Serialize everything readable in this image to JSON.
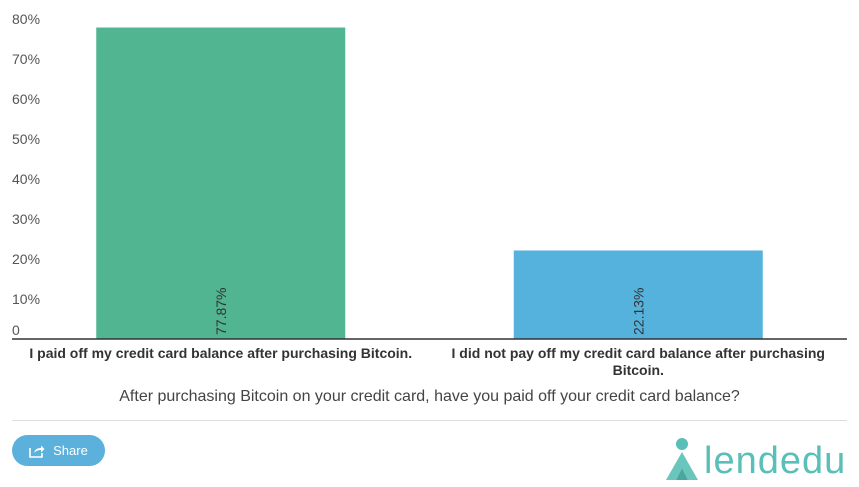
{
  "chart_data": {
    "type": "bar",
    "categories": [
      [
        "I paid off my credit card balance after purchasing Bitcoin."
      ],
      [
        "I did not pay off my credit card balance after purchasing",
        "Bitcoin."
      ]
    ],
    "values": [
      77.87,
      22.13
    ],
    "data_labels": [
      "77.87%",
      "22.13%"
    ],
    "colors": [
      "#52b591",
      "#55b2dc"
    ],
    "yticks": [
      "0",
      "10%",
      "20%",
      "30%",
      "40%",
      "50%",
      "60%",
      "70%",
      "80%"
    ],
    "ylim": [
      0,
      80
    ],
    "xlabel": "After purchasing Bitcoin on your credit card, have you paid off your credit card balance?",
    "ylabel": "",
    "grid": false
  },
  "footer": {
    "share_label": "Share",
    "logo_text": "lendedu",
    "logo_color": "#5abfb6",
    "share_color": "#5bb0dc"
  }
}
